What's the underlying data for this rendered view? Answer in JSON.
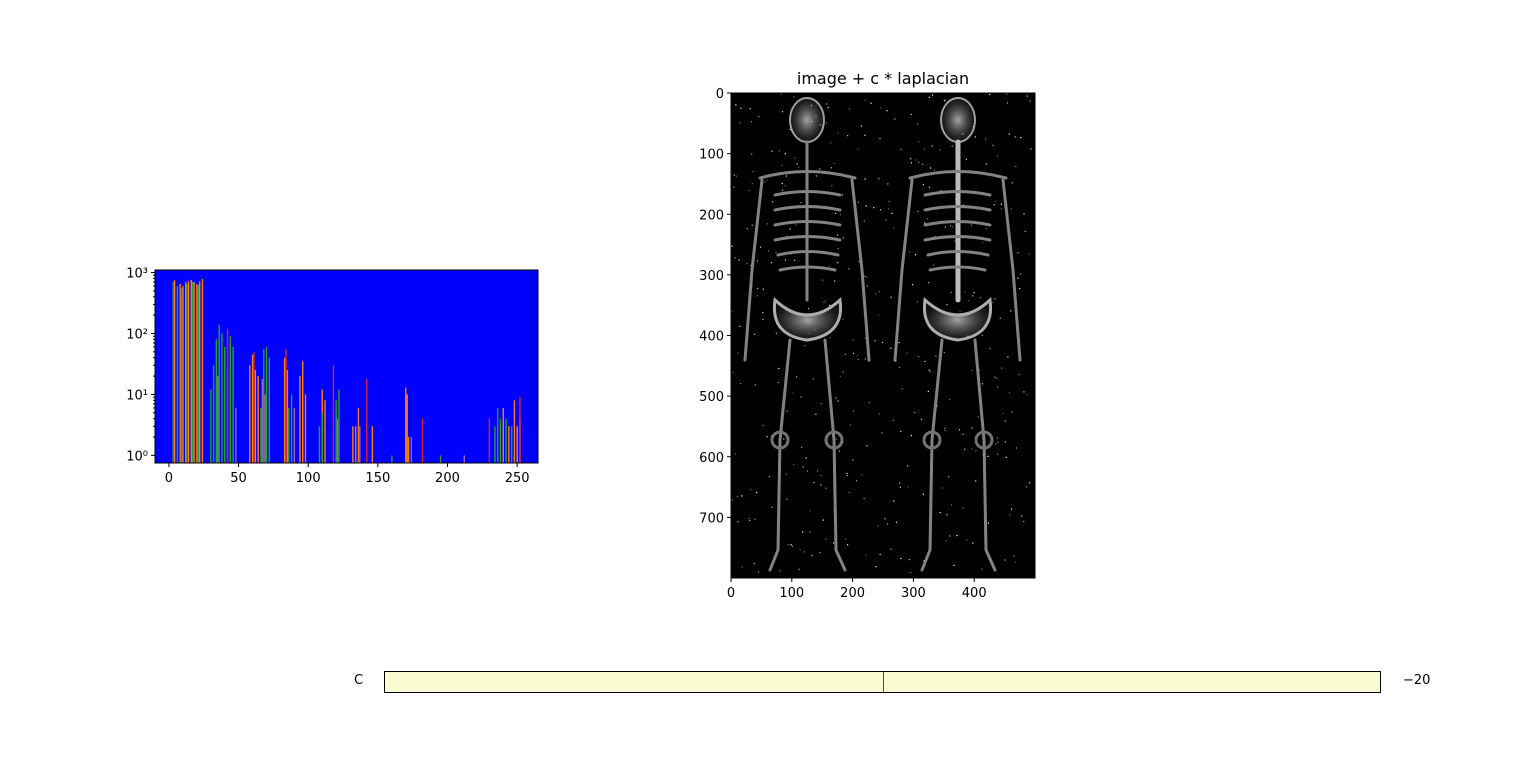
{
  "histogram": {
    "chart_data": {
      "type": "bar",
      "yscale": "log",
      "xlim": [
        -10,
        265
      ],
      "ylim": [
        0.75,
        1100
      ],
      "xticks": [
        "0",
        "50",
        "100",
        "150",
        "200",
        "250"
      ],
      "yticks": [
        "10⁰",
        "10¹",
        "10²",
        "10³"
      ],
      "background_color": "#0000ff",
      "grid": false,
      "series": [
        {
          "color": "#ff7f0e",
          "x": [
            4,
            8,
            10,
            12,
            14,
            16,
            18,
            20,
            22,
            24,
            58,
            60,
            62,
            64,
            83,
            85,
            94,
            96,
            98,
            110,
            112,
            132,
            134,
            136,
            146,
            170,
            171,
            172,
            240,
            244,
            248,
            250,
            252
          ],
          "values": [
            750,
            650,
            600,
            700,
            720,
            760,
            700,
            650,
            720,
            780,
            30,
            45,
            25,
            20,
            40,
            25,
            20,
            35,
            10,
            12,
            8,
            3,
            3,
            6,
            3,
            13,
            10,
            2,
            6,
            3,
            8,
            3,
            4
          ]
        },
        {
          "color": "#2ca02c",
          "x": [
            3,
            6,
            9,
            13,
            17,
            21,
            30,
            32,
            34,
            36,
            38,
            40,
            42,
            44,
            46,
            66,
            68,
            70,
            72,
            86,
            88,
            108,
            110,
            120,
            122,
            160,
            195,
            234,
            236,
            238,
            242,
            246
          ],
          "values": [
            700,
            600,
            550,
            650,
            700,
            620,
            12,
            30,
            80,
            140,
            100,
            60,
            25,
            90,
            60,
            6,
            55,
            60,
            40,
            6,
            10,
            3,
            5,
            8,
            12,
            1,
            1,
            3,
            6,
            4,
            4,
            3
          ]
        },
        {
          "color": "#9467bd",
          "x": [
            35,
            48,
            67,
            69,
            90,
            121,
            137,
            174,
            212
          ],
          "values": [
            20,
            6,
            18,
            10,
            6,
            4,
            3,
            2,
            1
          ]
        },
        {
          "color": "#d62728",
          "x": [
            42,
            61,
            84,
            118,
            142,
            182,
            230,
            252
          ],
          "values": [
            120,
            50,
            55,
            30,
            18,
            4,
            4,
            9
          ]
        }
      ]
    }
  },
  "image_panel": {
    "title": "image + c * laplacian",
    "xlim": [
      0,
      500
    ],
    "ylim": [
      800,
      0
    ],
    "xticks": [
      "0",
      "100",
      "200",
      "300",
      "400"
    ],
    "yticks": [
      "0",
      "100",
      "200",
      "300",
      "400",
      "500",
      "600",
      "700"
    ],
    "colormap": "gray"
  },
  "slider": {
    "label": "C",
    "value_text": "−20",
    "valmin": -40,
    "valmax": 0,
    "valinit": -20,
    "track_color": "#fafad2",
    "marker_color": "#ff0000"
  }
}
